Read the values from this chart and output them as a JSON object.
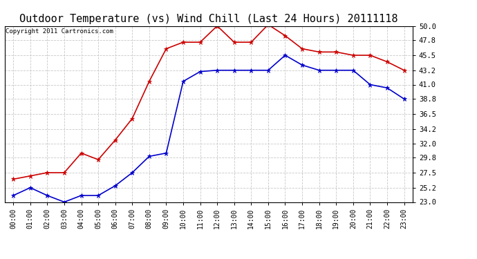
{
  "title": "Outdoor Temperature (vs) Wind Chill (Last 24 Hours) 20111118",
  "copyright": "Copyright 2011 Cartronics.com",
  "x_labels": [
    "00:00",
    "01:00",
    "02:00",
    "03:00",
    "04:00",
    "05:00",
    "06:00",
    "07:00",
    "08:00",
    "09:00",
    "10:00",
    "11:00",
    "12:00",
    "13:00",
    "14:00",
    "15:00",
    "16:00",
    "17:00",
    "18:00",
    "19:00",
    "20:00",
    "21:00",
    "22:00",
    "23:00"
  ],
  "red_data": [
    26.5,
    27.0,
    27.5,
    27.5,
    30.5,
    29.5,
    32.5,
    35.8,
    41.5,
    46.5,
    47.5,
    47.5,
    50.0,
    47.5,
    47.5,
    50.2,
    48.5,
    46.5,
    46.0,
    46.0,
    45.5,
    45.5,
    44.5,
    43.2
  ],
  "blue_data": [
    24.0,
    25.2,
    24.0,
    23.0,
    24.0,
    24.0,
    25.5,
    27.5,
    30.0,
    30.5,
    41.5,
    43.0,
    43.2,
    43.2,
    43.2,
    43.2,
    45.5,
    44.0,
    43.2,
    43.2,
    43.2,
    41.0,
    40.5,
    38.8
  ],
  "y_ticks": [
    23.0,
    25.2,
    27.5,
    29.8,
    32.0,
    34.2,
    36.5,
    38.8,
    41.0,
    43.2,
    45.5,
    47.8,
    50.0
  ],
  "ylim": [
    23.0,
    50.0
  ],
  "red_color": "#cc0000",
  "blue_color": "#0000cc",
  "bg_color": "#ffffff",
  "grid_color": "#c8c8c8",
  "title_fontsize": 11,
  "copyright_fontsize": 6.5,
  "tick_fontsize": 7,
  "ytick_fontsize": 7.5
}
